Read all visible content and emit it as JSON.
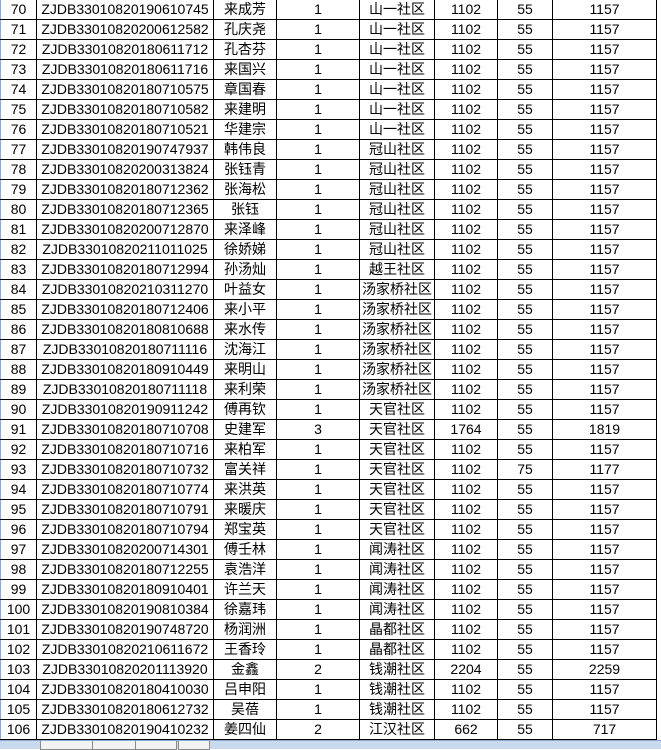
{
  "rows": [
    {
      "no": "70",
      "id": "ZJDB330108201906107 45",
      "name": "来成芳",
      "count": "1",
      "community": "山一社区",
      "base": "1102",
      "extra": "55",
      "total": "1157"
    }
  ]
}
